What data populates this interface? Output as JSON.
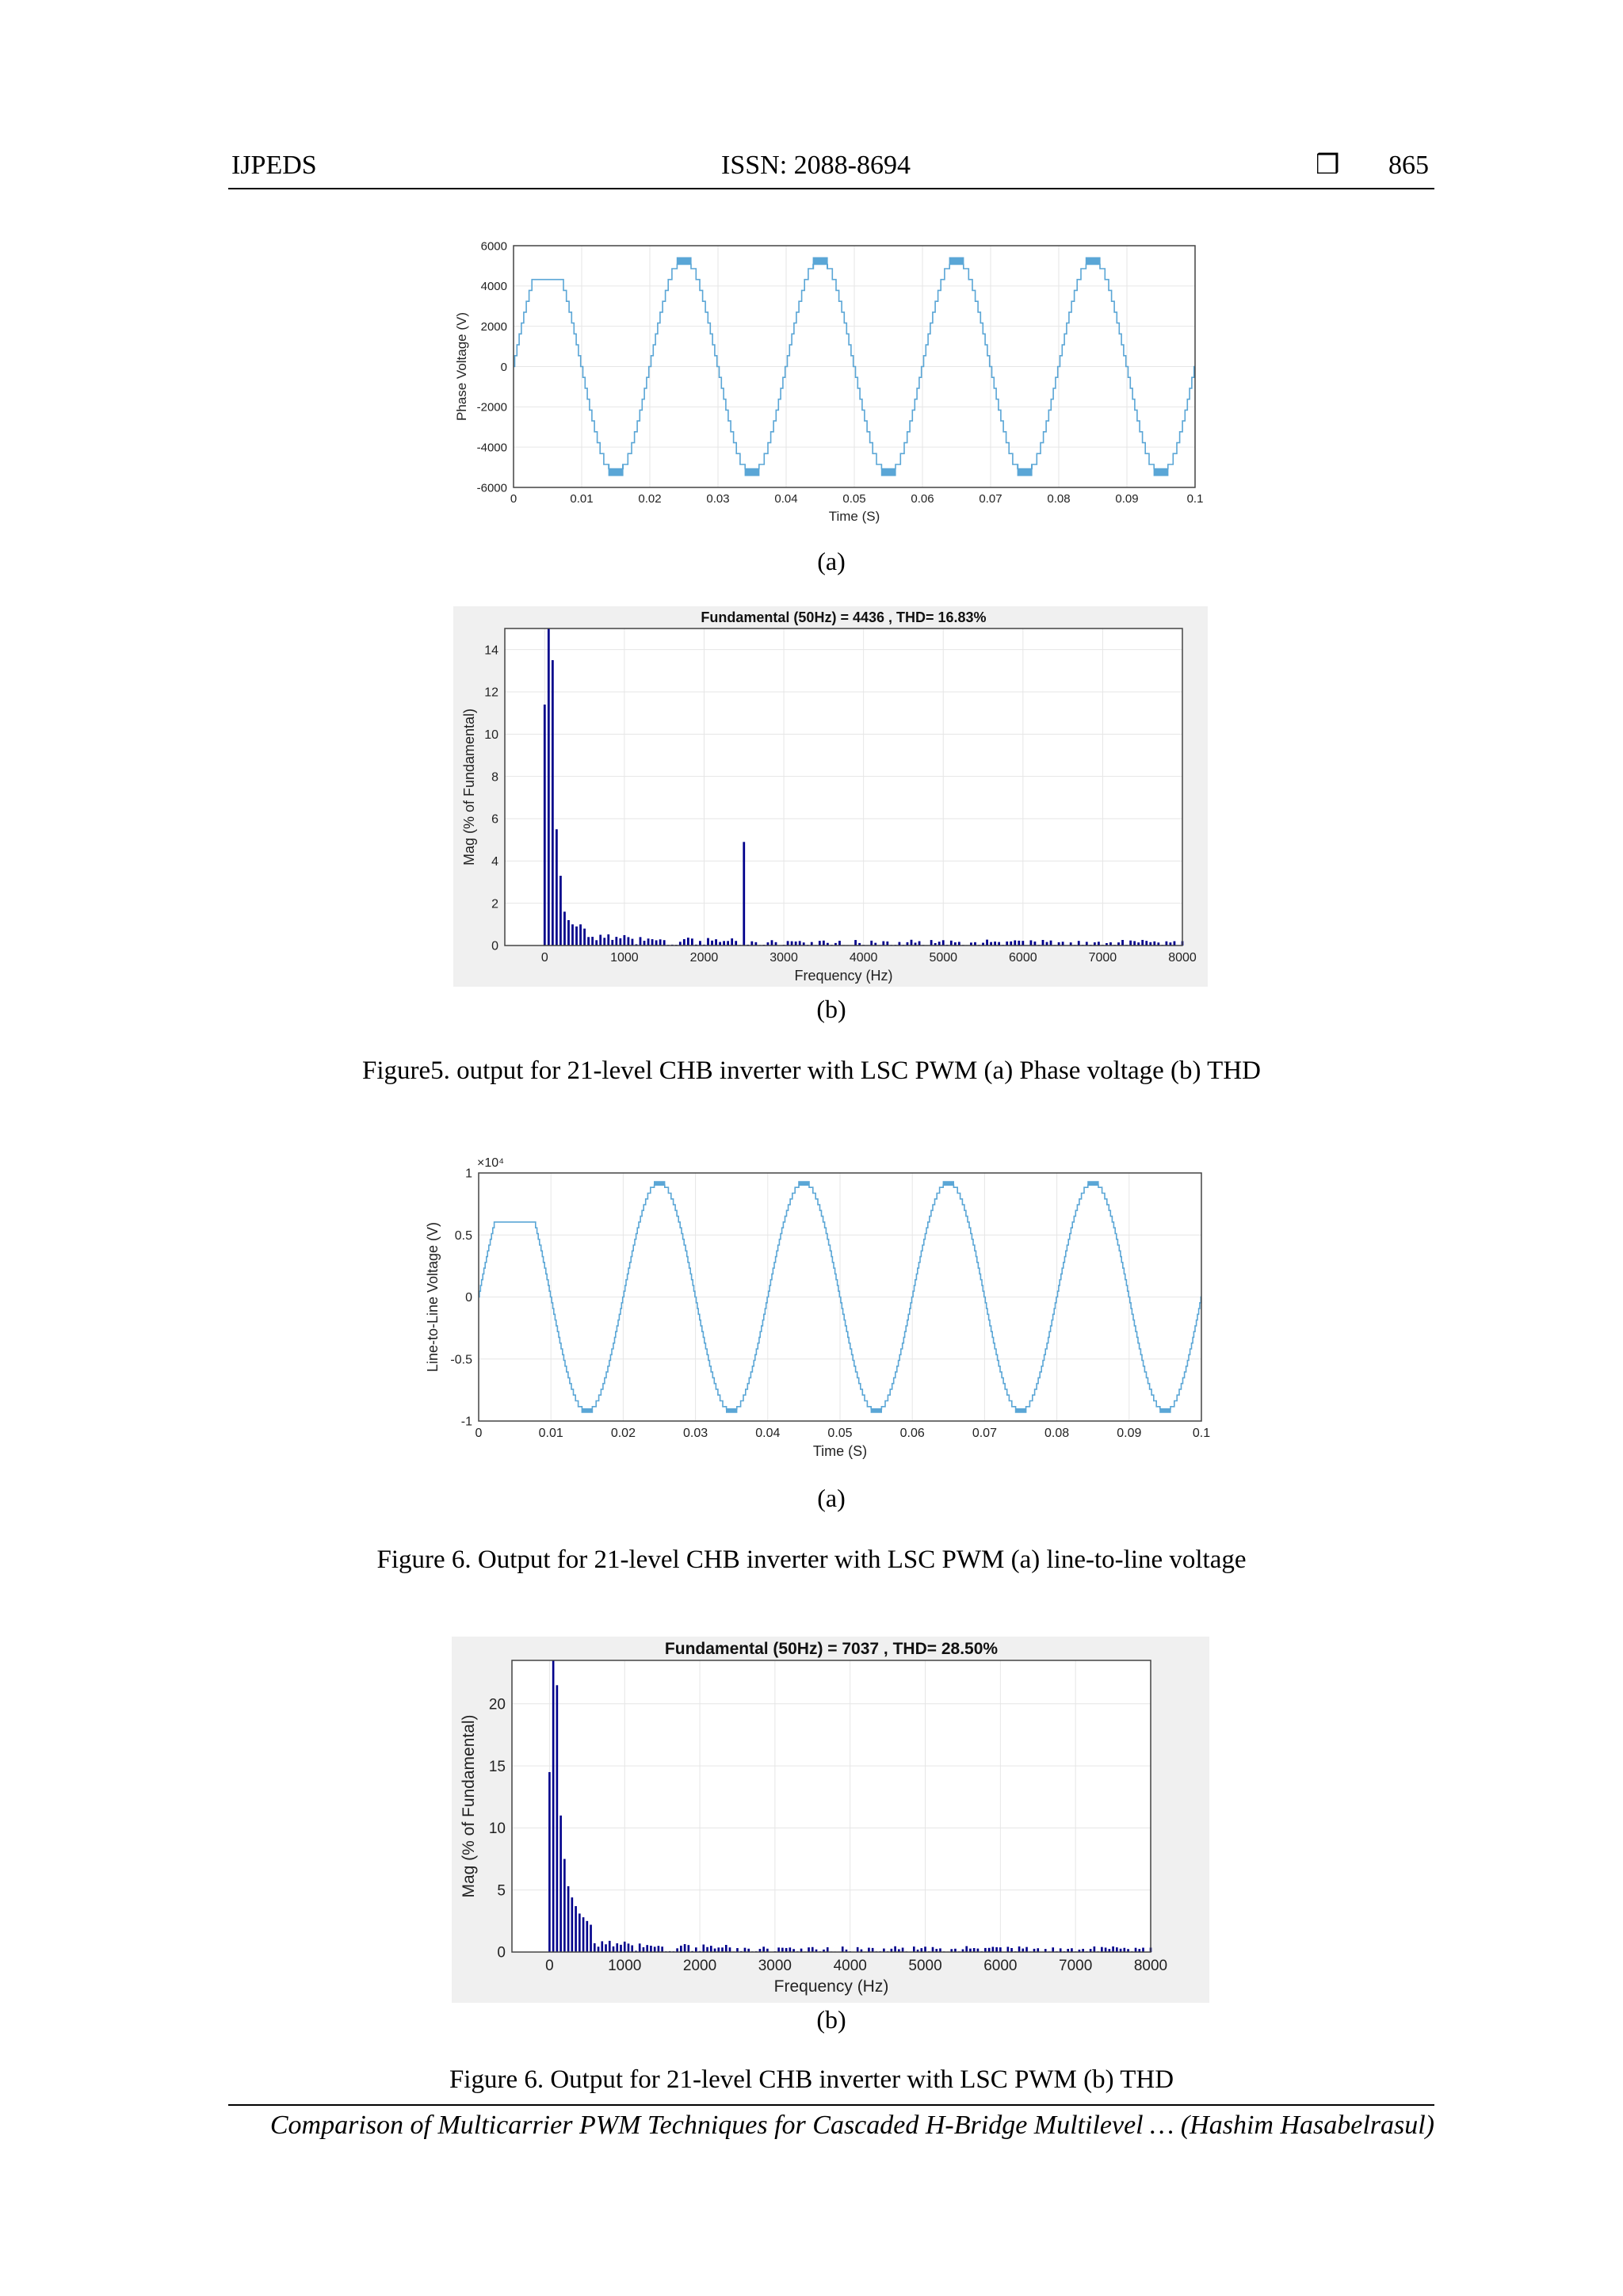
{
  "header": {
    "journal": "IJPEDS",
    "issn": "ISSN: 2088-8694",
    "symbol": "❒",
    "page": "865"
  },
  "fig5": {
    "a_label": "(a)",
    "b_label": "(b)",
    "caption": "Figure5. output for 21-level CHB inverter with LSC PWM (a) Phase voltage (b) THD"
  },
  "fig6a": {
    "a_label": "(a)",
    "caption": "Figure 6. Output for 21-level CHB inverter with LSC PWM (a) line-to-line voltage"
  },
  "fig6b": {
    "b_label": "(b)",
    "caption": "Figure 6. Output for 21-level CHB inverter with LSC PWM (b) THD"
  },
  "footer": {
    "text": "Comparison of Multicarrier PWM Techniques for Cascaded H-Bridge Multilevel … (Hashim Hasabelrasul)"
  },
  "colors": {
    "wave": "#5aa6d6",
    "bar": "#00008b",
    "grid": "#e6e6e6",
    "bg": "#f0f0f0"
  },
  "chart_data": [
    {
      "id": "fig5a",
      "type": "line",
      "title": "",
      "xlabel": "Time (S)",
      "ylabel": "Phase Voltage (V)",
      "xlim": [
        0,
        0.1
      ],
      "ylim": [
        -6000,
        6000
      ],
      "xticks": [
        "0",
        "0.01",
        "0.02",
        "0.03",
        "0.04",
        "0.05",
        "0.06",
        "0.07",
        "0.08",
        "0.09",
        "0.1"
      ],
      "yticks": [
        "6000",
        "4000",
        "2000",
        "0",
        "-2000",
        "-4000",
        "-6000"
      ],
      "series": [
        {
          "frequency_hz": 50,
          "amplitude": 5400,
          "first_peak": 4400,
          "levels": 21
        }
      ]
    },
    {
      "id": "fig5b",
      "type": "bar",
      "title": "Fundamental (50Hz) = 4436 , THD= 16.83%",
      "xlabel": "Frequency (Hz)",
      "ylabel": "Mag (% of Fundamental)",
      "xlim": [
        -500,
        8000
      ],
      "ylim": [
        0,
        15
      ],
      "xticks": [
        "0",
        "1000",
        "2000",
        "3000",
        "4000",
        "5000",
        "6000",
        "7000",
        "8000"
      ],
      "yticks": [
        "14",
        "12",
        "10",
        "8",
        "6",
        "4",
        "2",
        "0"
      ],
      "harmonics": [
        {
          "f": 0,
          "v": 11.4
        },
        {
          "f": 50,
          "v": 15
        },
        {
          "f": 100,
          "v": 13.5
        },
        {
          "f": 150,
          "v": 5.5
        },
        {
          "f": 200,
          "v": 3.3
        },
        {
          "f": 250,
          "v": 1.6
        },
        {
          "f": 300,
          "v": 1.2
        },
        {
          "f": 350,
          "v": 1.0
        },
        {
          "f": 400,
          "v": 0.9
        },
        {
          "f": 450,
          "v": 1.0
        },
        {
          "f": 500,
          "v": 0.8
        },
        {
          "f": 550,
          "v": 0.4
        },
        {
          "f": 2500,
          "v": 4.9
        }
      ],
      "noise_floor": 0.35
    },
    {
      "id": "fig6a",
      "type": "line",
      "title": "",
      "xlabel": "Time (S)",
      "ylabel": "Line-to-Line Voltage (V)",
      "y_multiplier": "×10⁴",
      "xlim": [
        0,
        0.1
      ],
      "ylim": [
        -1,
        1
      ],
      "xticks": [
        "0",
        "0.01",
        "0.02",
        "0.03",
        "0.04",
        "0.05",
        "0.06",
        "0.07",
        "0.08",
        "0.09",
        "0.1"
      ],
      "yticks": [
        "1",
        "0.5",
        "0",
        "-0.5",
        "-1"
      ],
      "series": [
        {
          "frequency_hz": 50,
          "amplitude": 0.93,
          "first_peak": 0.6,
          "levels": 41
        }
      ]
    },
    {
      "id": "fig6b",
      "type": "bar",
      "title": "Fundamental (50Hz) = 7037 , THD= 28.50%",
      "xlabel": "Frequency (Hz)",
      "ylabel": "Mag (% of Fundamental)",
      "xlim": [
        -500,
        8000
      ],
      "ylim": [
        0,
        23.5
      ],
      "xticks": [
        "0",
        "1000",
        "2000",
        "3000",
        "4000",
        "5000",
        "6000",
        "7000",
        "8000"
      ],
      "yticks": [
        "20",
        "15",
        "10",
        "5",
        "0"
      ],
      "harmonics": [
        {
          "f": 0,
          "v": 14.5
        },
        {
          "f": 50,
          "v": 23.5
        },
        {
          "f": 100,
          "v": 21.5
        },
        {
          "f": 150,
          "v": 11.0
        },
        {
          "f": 200,
          "v": 7.5
        },
        {
          "f": 250,
          "v": 5.3
        },
        {
          "f": 300,
          "v": 4.4
        },
        {
          "f": 350,
          "v": 3.7
        },
        {
          "f": 400,
          "v": 3.1
        },
        {
          "f": 450,
          "v": 2.8
        },
        {
          "f": 500,
          "v": 2.5
        },
        {
          "f": 550,
          "v": 2.2
        }
      ],
      "noise_floor": 0.6
    }
  ]
}
